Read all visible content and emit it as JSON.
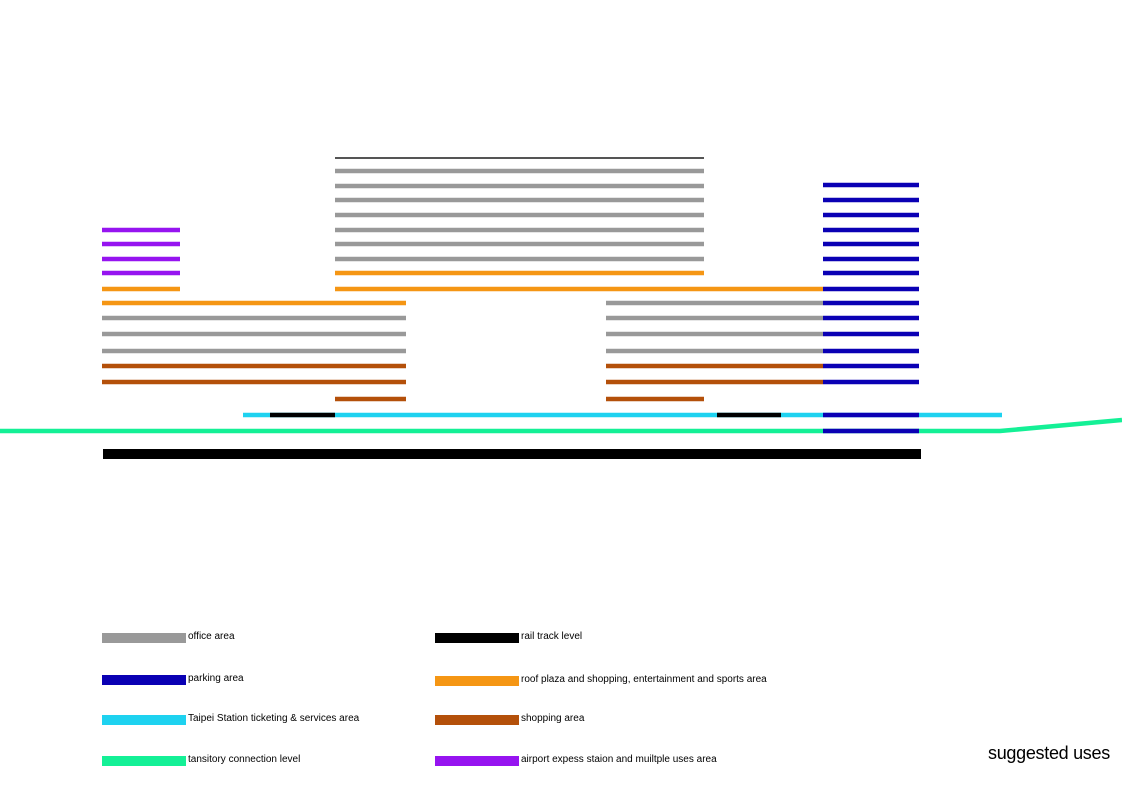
{
  "colors": {
    "office": "#999999",
    "parking": "#0a00b4",
    "ticketing": "#1ed2f0",
    "connection": "#14f096",
    "rail": "#000000",
    "roof_plaza": "#f59614",
    "shopping": "#b4500a",
    "airport": "#9614f0",
    "top_line": "#555555"
  },
  "legend": [
    {
      "key": "office",
      "label": "office area"
    },
    {
      "key": "parking",
      "label": "parking area"
    },
    {
      "key": "ticketing",
      "label": "Taipei Station ticketing & services area"
    },
    {
      "key": "connection",
      "label": "tansitory connection level"
    },
    {
      "key": "rail",
      "label": "rail track level"
    },
    {
      "key": "roof_plaza",
      "label": "roof plaza and shopping, entertainment and sports area"
    },
    {
      "key": "shopping",
      "label": "shopping area"
    },
    {
      "key": "airport",
      "label": "airport expess staion and muiltple uses area"
    }
  ],
  "caption": "suggested uses"
}
